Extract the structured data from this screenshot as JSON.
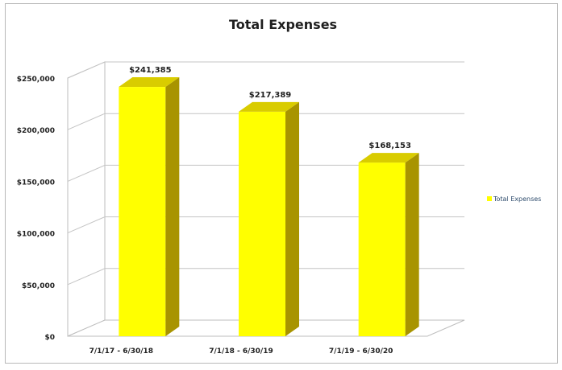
{
  "chart_data": {
    "type": "bar",
    "title": "Total Expenses",
    "categories": [
      "7/1/17 - 6/30/18",
      "7/1/18 - 6/30/19",
      "7/1/19 - 6/30/20"
    ],
    "series": [
      {
        "name": "Total Expenses",
        "values": [
          241385,
          217389,
          168153
        ],
        "data_labels": [
          "$241,385",
          "$217,389",
          "$168,153"
        ],
        "color": "#ffff00",
        "side_color": "#a89400",
        "top_color": "#d9cc00"
      }
    ],
    "y_ticks": [
      {
        "value": 0,
        "label": "$0"
      },
      {
        "value": 50000,
        "label": "$50,000"
      },
      {
        "value": 100000,
        "label": "$100,000"
      },
      {
        "value": 150000,
        "label": "$150,000"
      },
      {
        "value": 200000,
        "label": "$200,000"
      },
      {
        "value": 250000,
        "label": "$250,000"
      }
    ],
    "ylim": [
      0,
      250000
    ],
    "grid": true,
    "legend_position": "right",
    "style": "3d-column"
  }
}
